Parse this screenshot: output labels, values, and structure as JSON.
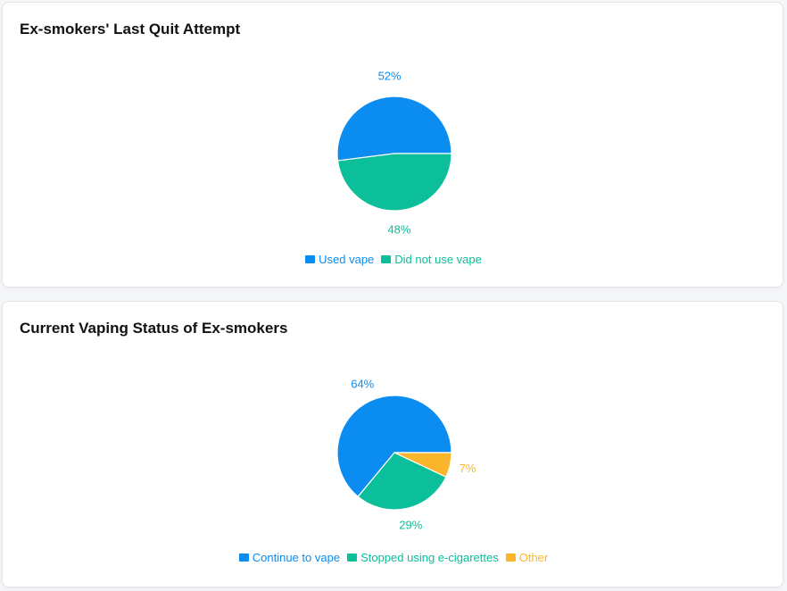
{
  "chart_data": [
    {
      "type": "pie",
      "title": "Ex-smokers' Last Quit Attempt",
      "slices": [
        {
          "label": "Used vape",
          "value": 52,
          "display": "52%",
          "color": "#0a8cf0"
        },
        {
          "label": "Did not use vape",
          "value": 48,
          "display": "48%",
          "color": "#0bbf9a"
        }
      ],
      "legend_position": "bottom-center"
    },
    {
      "type": "pie",
      "title": "Current Vaping Status of Ex-smokers",
      "slices": [
        {
          "label": "Continue to vape",
          "value": 64,
          "display": "64%",
          "color": "#0a8cf0"
        },
        {
          "label": "Stopped using e-cigarettes",
          "value": 29,
          "display": "29%",
          "color": "#0bbf9a"
        },
        {
          "label": "Other",
          "value": 7,
          "display": "7%",
          "color": "#fbb52a"
        }
      ],
      "legend_position": "bottom-center"
    }
  ]
}
